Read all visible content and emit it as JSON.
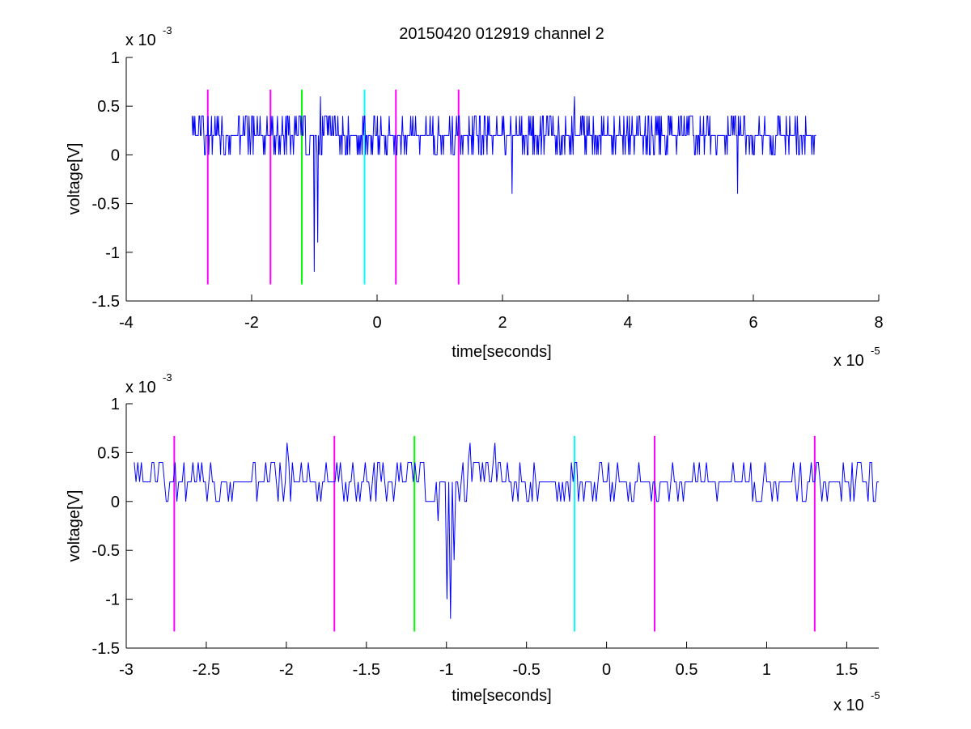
{
  "figure": {
    "title": "20150420 012919 channel 2",
    "background": "#ffffff"
  },
  "colors": {
    "signal": "#0000ff",
    "magenta": "#ff00ff",
    "green": "#00ff00",
    "cyan": "#00ffff",
    "axis": "#000000"
  },
  "chart_data": [
    {
      "type": "line",
      "title": "20150420 012919 channel 2",
      "xlabel": "time[seconds]",
      "ylabel": "voltage[V]",
      "x_exponent_label": "x 10",
      "x_exponent": "-5",
      "y_exponent_label": "x 10",
      "y_exponent": "-3",
      "xlim": [
        -4,
        8
      ],
      "ylim": [
        -1.5,
        1
      ],
      "xticks": [
        -4,
        -2,
        0,
        2,
        4,
        6,
        8
      ],
      "xtick_labels": [
        "-4",
        "-2",
        "0",
        "2",
        "4",
        "6",
        "8"
      ],
      "yticks": [
        -1.5,
        -1,
        -0.5,
        0,
        0.5,
        1
      ],
      "ytick_labels": [
        "-1.5",
        "-1",
        "-0.5",
        "0",
        "0.5",
        "1"
      ],
      "grid": false,
      "series": [
        {
          "x_range": [
            -2.95,
            7.0
          ],
          "points": 900,
          "baseline": 0.2,
          "levels": [
            0,
            0.2,
            0.4
          ],
          "features": [
            {
              "x": -1.0,
              "y": -1.2
            },
            {
              "x": -0.95,
              "y": -0.9
            },
            {
              "x": -0.9,
              "y": 0.6
            },
            {
              "x": 2.15,
              "y": -0.4
            },
            {
              "x": 3.15,
              "y": 0.6
            },
            {
              "x": 5.75,
              "y": -0.4
            }
          ]
        }
      ],
      "vertical_markers": [
        {
          "x": -2.7,
          "color": "magenta",
          "y_range": [
            -1.33,
            0.67
          ]
        },
        {
          "x": -1.7,
          "color": "magenta",
          "y_range": [
            -1.33,
            0.67
          ]
        },
        {
          "x": -1.2,
          "color": "green",
          "y_range": [
            -1.33,
            0.67
          ]
        },
        {
          "x": -0.2,
          "color": "cyan",
          "y_range": [
            -1.33,
            0.67
          ]
        },
        {
          "x": 0.3,
          "color": "magenta",
          "y_range": [
            -1.33,
            0.67
          ]
        },
        {
          "x": 1.3,
          "color": "magenta",
          "y_range": [
            -1.33,
            0.67
          ]
        }
      ]
    },
    {
      "type": "line",
      "title": "",
      "xlabel": "time[seconds]",
      "ylabel": "voltage[V]",
      "x_exponent_label": "x 10",
      "x_exponent": "-5",
      "y_exponent_label": "x 10",
      "y_exponent": "-3",
      "xlim": [
        -3.0,
        1.7
      ],
      "ylim": [
        -1.5,
        1
      ],
      "xticks": [
        -3,
        -2.5,
        -2,
        -1.5,
        -1,
        -0.5,
        0,
        0.5,
        1,
        1.5
      ],
      "xtick_labels": [
        "-3",
        "-2.5",
        "-2",
        "-1.5",
        "-1",
        "-0.5",
        "0",
        "0.5",
        "1",
        "1.5"
      ],
      "yticks": [
        -1.5,
        -1,
        -0.5,
        0,
        0.5,
        1
      ],
      "ytick_labels": [
        "-1.5",
        "-1",
        "-0.5",
        "0",
        "0.5",
        "1"
      ],
      "grid": false,
      "series": [
        {
          "x_range": [
            -2.95,
            1.7
          ],
          "points": 420,
          "baseline": 0.2,
          "levels": [
            0,
            0.2,
            0.4
          ],
          "features": [
            {
              "x": -1.05,
              "y": -0.2
            },
            {
              "x": -1.0,
              "y": -1.0
            },
            {
              "x": -0.98,
              "y": -1.2
            },
            {
              "x": -0.95,
              "y": -0.6
            },
            {
              "x": -0.85,
              "y": 0.6
            },
            {
              "x": -0.7,
              "y": 0.6
            },
            {
              "x": -2.0,
              "y": 0.6
            }
          ]
        }
      ],
      "vertical_markers": [
        {
          "x": -2.7,
          "color": "magenta",
          "y_range": [
            -1.33,
            0.67
          ]
        },
        {
          "x": -1.7,
          "color": "magenta",
          "y_range": [
            -1.33,
            0.67
          ]
        },
        {
          "x": -1.2,
          "color": "green",
          "y_range": [
            -1.33,
            0.67
          ]
        },
        {
          "x": -0.2,
          "color": "cyan",
          "y_range": [
            -1.33,
            0.67
          ]
        },
        {
          "x": 0.3,
          "color": "magenta",
          "y_range": [
            -1.33,
            0.67
          ]
        },
        {
          "x": 1.3,
          "color": "magenta",
          "y_range": [
            -1.33,
            0.67
          ]
        }
      ]
    }
  ]
}
